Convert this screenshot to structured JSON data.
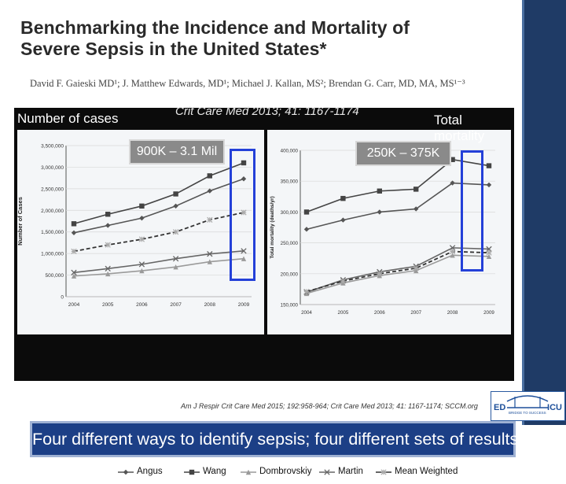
{
  "slide": {
    "title_line1": "Benchmarking the Incidence and Mortality of",
    "title_line2": "Severe Sepsis in the United States*",
    "authors": "David F. Gaieski MD¹; J. Matthew Edwards, MD¹; Michael J. Kallan, MS²; Brendan G. Carr, MD, MA, MS¹⁻³",
    "journal_cite": "Crit Care Med 2013; 41: 1167-1174",
    "footer_cite": "Am J Respir Crit Care Med 2015; 192:958-964; Crit Care Med 2013; 41: 1167-1174; SCCM.org",
    "banner": "Four different ways to identify sepsis; four different sets of results",
    "logo_left": "ED",
    "logo_right": "ICU",
    "logo_tag": "BRIDGE TO SUCCESS",
    "colors": {
      "right_bar": "#1f3b66",
      "banner": "#1c3f86",
      "highlight": "#2440d8"
    }
  },
  "chart_data": [
    {
      "type": "line",
      "header": "Number of cases",
      "callout": "900K – 3.1 Mil",
      "ylabel": "Number of Cases",
      "x": [
        "2004",
        "2005",
        "2006",
        "2007",
        "2008",
        "2009"
      ],
      "ylim": [
        0,
        3500000
      ],
      "yticks": [
        "0",
        "500,000",
        "1,000,000",
        "1,500,000",
        "2,000,000",
        "2,500,000",
        "3,000,000",
        "3,500,000"
      ],
      "series": [
        {
          "name": "Angus",
          "marker": "diamond",
          "values": [
            1480000,
            1650000,
            1820000,
            2100000,
            2450000,
            2730000
          ]
        },
        {
          "name": "Wang",
          "marker": "square",
          "values": [
            1690000,
            1910000,
            2100000,
            2380000,
            2800000,
            3100000
          ]
        },
        {
          "name": "Dombrovskiy",
          "marker": "triangle",
          "values": [
            480000,
            530000,
            600000,
            690000,
            810000,
            880000
          ]
        },
        {
          "name": "Martin",
          "marker": "x",
          "values": [
            560000,
            650000,
            750000,
            880000,
            990000,
            1060000
          ]
        },
        {
          "name": "Mean Weighted",
          "marker": "star",
          "dashed": true,
          "values": [
            1050000,
            1200000,
            1330000,
            1500000,
            1780000,
            1950000
          ]
        }
      ]
    },
    {
      "type": "line",
      "header": "Total mortality",
      "callout": "250K – 375K",
      "ylabel": "Total mortality (deaths/yr)",
      "x": [
        "2004",
        "2005",
        "2006",
        "2007",
        "2008",
        "2009"
      ],
      "ylim": [
        150000,
        400000
      ],
      "yticks": [
        "150,000",
        "200,000",
        "250,000",
        "300,000",
        "350,000",
        "400,000"
      ],
      "series": [
        {
          "name": "Angus",
          "marker": "diamond",
          "values": [
            272000,
            287000,
            300000,
            305000,
            347000,
            344000
          ]
        },
        {
          "name": "Wang",
          "marker": "square",
          "values": [
            300000,
            322000,
            334000,
            337000,
            385000,
            375000
          ]
        },
        {
          "name": "Dombrovskiy",
          "marker": "triangle",
          "values": [
            168000,
            185000,
            197000,
            205000,
            230000,
            228000
          ]
        },
        {
          "name": "Martin",
          "marker": "x",
          "values": [
            170000,
            190000,
            203000,
            212000,
            242000,
            240000
          ]
        },
        {
          "name": "Mean Weighted",
          "marker": "star",
          "dashed": true,
          "values": [
            171000,
            188000,
            200000,
            209000,
            236000,
            234000
          ]
        }
      ]
    }
  ],
  "legend": [
    "Angus",
    "Wang",
    "Dombrovskiy",
    "Martin",
    "Mean Weighted"
  ]
}
